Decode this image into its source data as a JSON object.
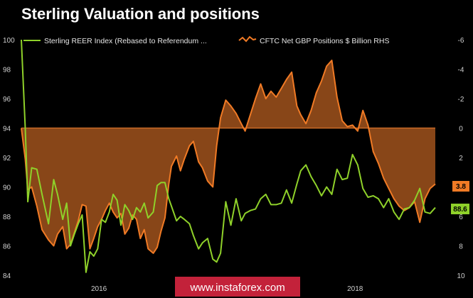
{
  "chart_data": {
    "type": "line",
    "title": "Sterling Valuation and positions",
    "colors": {
      "background": "#000000",
      "reer": "#8fd12a",
      "cftc_line": "#f07a25",
      "cftc_fill": "#a0521c",
      "zero_line": "#c96a26",
      "watermark": "#c3223a"
    },
    "x_tick_labels": [
      "2016",
      "2018"
    ],
    "left_axis": {
      "range": [
        84,
        100
      ],
      "ticks": [
        "100",
        "98",
        "96",
        "94",
        "92",
        "90",
        "88",
        "86",
        "84"
      ]
    },
    "right_axis": {
      "range": [
        -6,
        10
      ],
      "inverted": true,
      "ticks": [
        "-6",
        "-4",
        "-2",
        "0",
        "2",
        "4",
        "6",
        "8",
        "10"
      ]
    },
    "grid": false,
    "legend_position": "top",
    "series": [
      {
        "name": "Sterling REER Index (Rebased to Referendum ...",
        "axis": "left",
        "last_value_label": "88.6",
        "x": [
          2015.42,
          2015.45,
          2015.47,
          2015.5,
          2015.54,
          2015.58,
          2015.63,
          2015.67,
          2015.7,
          2015.74,
          2015.77,
          2015.8,
          2015.83,
          2015.86,
          2015.89,
          2015.92,
          2015.95,
          2015.98,
          2016.01,
          2016.04,
          2016.07,
          2016.1,
          2016.13,
          2016.16,
          2016.19,
          2016.22,
          2016.25,
          2016.28,
          2016.31,
          2016.34,
          2016.37,
          2016.4,
          2016.44,
          2016.47,
          2016.5,
          2016.53,
          2016.56,
          2016.58,
          2016.62,
          2016.65,
          2016.68,
          2016.72,
          2016.75,
          2016.79,
          2016.82,
          2016.86,
          2016.9,
          2016.93,
          2016.96,
          2017.0,
          2017.04,
          2017.08,
          2017.12,
          2017.15,
          2017.19,
          2017.23,
          2017.27,
          2017.31,
          2017.35,
          2017.39,
          2017.43,
          2017.47,
          2017.51,
          2017.55,
          2017.58,
          2017.62,
          2017.66,
          2017.7,
          2017.74,
          2017.78,
          2017.82,
          2017.86,
          2017.9,
          2017.94,
          2017.98,
          2018.02,
          2018.06,
          2018.1,
          2018.14,
          2018.18,
          2018.22,
          2018.26,
          2018.3,
          2018.34,
          2018.38,
          2018.42,
          2018.46,
          2018.5,
          2018.54,
          2018.58,
          2018.62
        ],
        "values": [
          100,
          94,
          89,
          91.3,
          91.2,
          89.5,
          87.5,
          90.5,
          89.5,
          87.8,
          88.9,
          86,
          86.8,
          87.5,
          88.1,
          84.2,
          85.6,
          85.3,
          85.8,
          87.8,
          87.6,
          88.3,
          89.5,
          89.1,
          87.4,
          88.8,
          88.4,
          87.8,
          88.6,
          88.3,
          88.9,
          87.9,
          88.3,
          90.1,
          90.3,
          90.3,
          89.2,
          88.7,
          87.7,
          88,
          87.8,
          87.5,
          86.7,
          85.8,
          86.2,
          86.5,
          85.1,
          84.9,
          85.5,
          89,
          87.4,
          89.2,
          87.7,
          88.2,
          88.4,
          88.5,
          89.2,
          89.5,
          88.8,
          88.8,
          88.9,
          89.8,
          88.9,
          90.2,
          91.1,
          91.5,
          90.7,
          90.1,
          89.4,
          90,
          89.5,
          91.2,
          90.5,
          90.6,
          92.2,
          91.5,
          89.9,
          89.3,
          89.4,
          89.2,
          88.6,
          89.2,
          88.3,
          87.8,
          88.5,
          88.6,
          89.1,
          89.9,
          88.3,
          88.2,
          88.6
        ]
      },
      {
        "name": "CFTC Net GBP Positions $ Billion RHS",
        "axis": "right",
        "last_value_label": "3.8",
        "x": [
          2015.42,
          2015.45,
          2015.47,
          2015.5,
          2015.54,
          2015.58,
          2015.63,
          2015.67,
          2015.7,
          2015.74,
          2015.77,
          2015.8,
          2015.83,
          2015.86,
          2015.89,
          2015.92,
          2015.95,
          2015.98,
          2016.01,
          2016.04,
          2016.07,
          2016.1,
          2016.13,
          2016.16,
          2016.19,
          2016.22,
          2016.25,
          2016.28,
          2016.31,
          2016.34,
          2016.37,
          2016.4,
          2016.44,
          2016.47,
          2016.5,
          2016.53,
          2016.56,
          2016.58,
          2016.62,
          2016.65,
          2016.68,
          2016.72,
          2016.75,
          2016.79,
          2016.82,
          2016.86,
          2016.9,
          2016.93,
          2016.96,
          2017.0,
          2017.04,
          2017.08,
          2017.12,
          2017.15,
          2017.19,
          2017.23,
          2017.27,
          2017.31,
          2017.35,
          2017.39,
          2017.43,
          2017.47,
          2017.51,
          2017.55,
          2017.58,
          2017.62,
          2017.66,
          2017.7,
          2017.74,
          2017.78,
          2017.82,
          2017.86,
          2017.9,
          2017.94,
          2017.98,
          2018.02,
          2018.06,
          2018.1,
          2018.14,
          2018.18,
          2018.22,
          2018.26,
          2018.3,
          2018.34,
          2018.38,
          2018.42,
          2018.46,
          2018.5,
          2018.54,
          2018.58,
          2018.62
        ],
        "values": [
          0,
          2.1,
          4.2,
          4,
          5.3,
          6.9,
          7.6,
          8,
          7.2,
          6.7,
          8.2,
          7.9,
          7.1,
          6.3,
          5.2,
          5.3,
          8.2,
          7.5,
          6.7,
          6.2,
          5.6,
          5.1,
          5.7,
          6.1,
          5.8,
          7.2,
          6.8,
          5.9,
          6.2,
          7.5,
          6.9,
          8.2,
          8.5,
          8.1,
          7,
          6.1,
          3.8,
          2.6,
          1.9,
          2.9,
          2.1,
          1.2,
          0.9,
          2.3,
          2.7,
          3.6,
          4,
          1.2,
          -0.7,
          -1.9,
          -1.5,
          -1,
          -0.3,
          0.2,
          -0.9,
          -2,
          -3,
          -2,
          -2.5,
          -2.1,
          -2.7,
          -3.3,
          -3.8,
          -1.5,
          -0.9,
          -0.3,
          -1.2,
          -2.4,
          -3.2,
          -4.2,
          -4.6,
          -2.1,
          -0.5,
          -0.1,
          -0.2,
          0.2,
          -1.2,
          -0.2,
          1.6,
          2.4,
          3.4,
          4.1,
          4.8,
          5.3,
          5.6,
          5.4,
          5,
          6.4,
          4.8,
          4.1,
          3.8
        ]
      }
    ]
  },
  "watermark": "www.instaforex.com"
}
